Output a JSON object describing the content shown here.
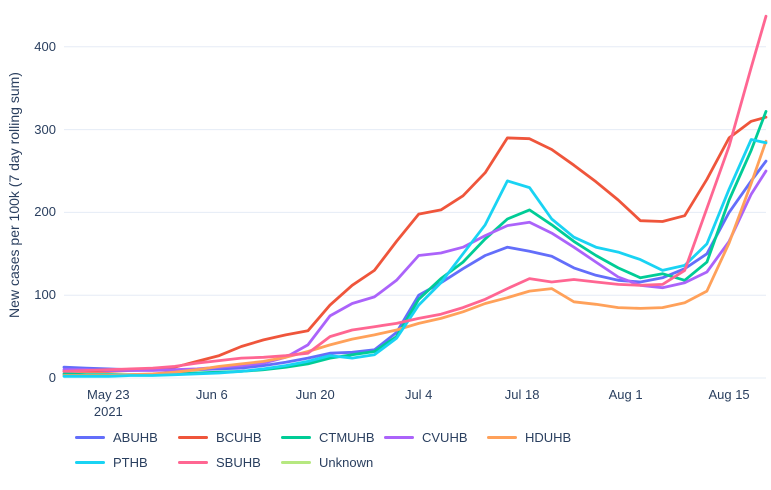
{
  "chart_data": {
    "type": "line",
    "title": "",
    "xlabel": "",
    "ylabel": "New cases per 100k (7 day rolling sum)",
    "grid": "horizontal-only",
    "grid_color": "#e5ecf6",
    "text_color": "#2a3f5f",
    "background": "#ffffff",
    "legend_position": "bottom",
    "y_ticks": [
      0,
      100,
      200,
      300,
      400
    ],
    "y_range": [
      0,
      447
    ],
    "x_range_days": [
      0,
      95
    ],
    "x_start_date": "May 17 2021",
    "x_ticks": [
      {
        "day": 6,
        "label": "May 23",
        "sublabel": "2021"
      },
      {
        "day": 20,
        "label": "Jun 6",
        "sublabel": ""
      },
      {
        "day": 34,
        "label": "Jun 20",
        "sublabel": ""
      },
      {
        "day": 48,
        "label": "Jul 4",
        "sublabel": ""
      },
      {
        "day": 62,
        "label": "Jul 18",
        "sublabel": ""
      },
      {
        "day": 76,
        "label": "Aug 1",
        "sublabel": ""
      },
      {
        "day": 90,
        "label": "Aug 15",
        "sublabel": ""
      }
    ],
    "x_days": [
      0,
      3,
      6,
      9,
      12,
      15,
      18,
      21,
      24,
      27,
      30,
      33,
      36,
      39,
      42,
      45,
      48,
      51,
      54,
      57,
      60,
      63,
      66,
      69,
      72,
      75,
      78,
      81,
      84,
      87,
      90,
      93,
      95
    ],
    "x_dates": [
      "May 17",
      "May 20",
      "May 23",
      "May 26",
      "May 29",
      "Jun 1",
      "Jun 4",
      "Jun 7",
      "Jun 10",
      "Jun 13",
      "Jun 16",
      "Jun 19",
      "Jun 22",
      "Jun 25",
      "Jun 28",
      "Jul 1",
      "Jul 4",
      "Jul 7",
      "Jul 10",
      "Jul 13",
      "Jul 16",
      "Jul 19",
      "Jul 22",
      "Jul 25",
      "Jul 28",
      "Jul 31",
      "Aug 3",
      "Aug 6",
      "Aug 9",
      "Aug 12",
      "Aug 15",
      "Aug 18",
      "Aug 20"
    ],
    "series": [
      {
        "name": "ABUHB",
        "color": "#636EFA",
        "values": [
          13,
          12,
          11,
          10,
          10,
          9,
          10,
          11,
          12,
          15,
          19,
          24,
          30,
          31,
          34,
          55,
          100,
          115,
          132,
          148,
          158,
          153,
          147,
          133,
          124,
          118,
          116,
          121,
          132,
          150,
          200,
          238,
          262
        ]
      },
      {
        "name": "BCUHB",
        "color": "#EF553B",
        "values": [
          8,
          8,
          8,
          9,
          10,
          13,
          20,
          27,
          38,
          46,
          52,
          57,
          88,
          112,
          130,
          165,
          198,
          203,
          220,
          248,
          290,
          289,
          276,
          257,
          237,
          215,
          190,
          189,
          196,
          240,
          290,
          310,
          315
        ]
      },
      {
        "name": "CTMUHB",
        "color": "#00CC96",
        "values": [
          5,
          4,
          4,
          4,
          4,
          5,
          6,
          7,
          8,
          10,
          13,
          17,
          24,
          28,
          32,
          50,
          95,
          120,
          140,
          168,
          192,
          203,
          185,
          165,
          148,
          133,
          121,
          126,
          118,
          140,
          215,
          275,
          322
        ]
      },
      {
        "name": "CVUHB",
        "color": "#AB63FA",
        "values": [
          10,
          10,
          9,
          9,
          9,
          10,
          11,
          13,
          15,
          18,
          25,
          40,
          75,
          90,
          98,
          118,
          148,
          151,
          158,
          172,
          184,
          188,
          175,
          158,
          140,
          122,
          112,
          109,
          115,
          128,
          165,
          222,
          250
        ]
      },
      {
        "name": "HDUHB",
        "color": "#FFA15A",
        "values": [
          3,
          3,
          3,
          4,
          5,
          7,
          10,
          14,
          17,
          20,
          25,
          32,
          40,
          47,
          52,
          58,
          66,
          72,
          80,
          90,
          97,
          105,
          108,
          92,
          89,
          85,
          84,
          85,
          91,
          105,
          163,
          235,
          286
        ]
      },
      {
        "name": "PTHB",
        "color": "#19D3F3",
        "values": [
          2,
          2,
          2,
          3,
          3,
          4,
          5,
          6,
          8,
          11,
          15,
          20,
          27,
          24,
          28,
          48,
          88,
          115,
          150,
          185,
          238,
          230,
          192,
          170,
          158,
          152,
          143,
          130,
          136,
          162,
          228,
          288,
          284
        ]
      },
      {
        "name": "SBUHB",
        "color": "#FF6692",
        "values": [
          8,
          9,
          10,
          11,
          12,
          14,
          18,
          21,
          24,
          25,
          27,
          30,
          50,
          58,
          62,
          66,
          72,
          77,
          85,
          95,
          108,
          120,
          116,
          119,
          116,
          113,
          112,
          113,
          130,
          205,
          280,
          375,
          437
        ]
      },
      {
        "name": "Unknown",
        "color": "#B6E880",
        "values": []
      }
    ]
  }
}
